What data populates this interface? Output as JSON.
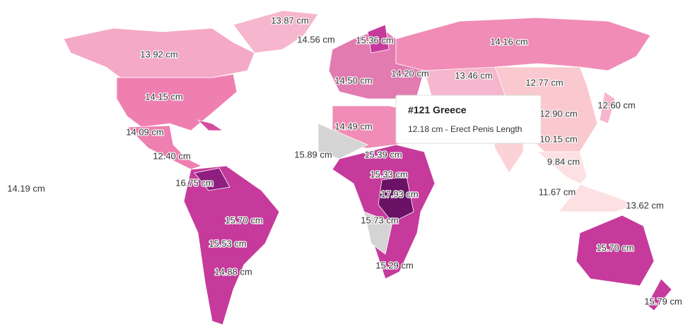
{
  "labels": [
    "13.87 cm",
    "14.56 cm",
    "15.36 cm",
    "14.16 cm",
    "13.92 cm",
    "14.20 cm",
    "13.46 cm",
    "14.50 cm",
    "12.77 cm",
    "14.15 cm",
    "12.60 cm",
    "12.90 cm",
    "14.09 cm",
    "14.49 cm",
    "10.15 cm",
    "15.89 cm",
    "12.40 cm",
    "15.39 cm",
    "9.84 cm",
    "15.33 cm",
    "16.75 cm",
    "14.19 cm",
    "17.93 cm",
    "11.67 cm",
    "13.62 cm",
    "15.70 cm",
    "15.73 cm",
    "15.53 cm",
    "15.70 cm",
    "14.88 cm",
    "15.29 cm",
    "15.79 cm"
  ],
  "tooltip": {
    "title": "#121 Greece",
    "text": "12.18 cm - Erect Penis Length"
  }
}
